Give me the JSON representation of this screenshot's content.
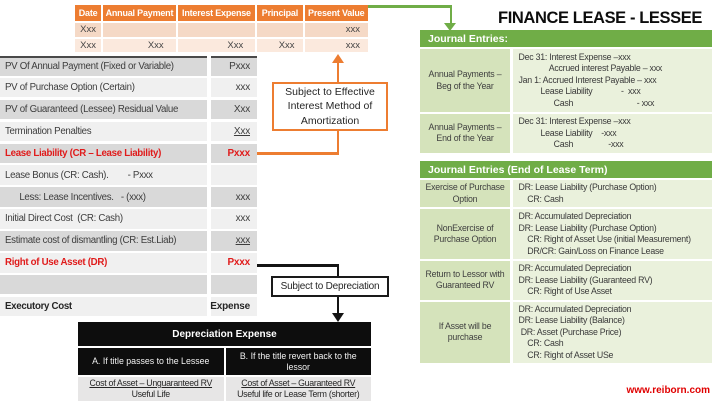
{
  "colors": {
    "accent_orange": "#ED7D31",
    "accent_green": "#70AD47",
    "highlight_red": "#E01B1B",
    "footer_red": "#E00000",
    "table_gray_dark": "#D9D9D9",
    "table_gray_light": "#F0F0F0",
    "green_cell_dark": "#D5E3BB",
    "green_cell_light": "#EAF1DC",
    "black_table": "#0D0D0D"
  },
  "amortization_table": {
    "headers": [
      "Date",
      "Annual Payment",
      "Interest Expense",
      "Principal",
      "Present Value"
    ],
    "rows": [
      [
        "Xxx",
        "",
        "",
        "",
        "xxx"
      ],
      [
        "Xxx",
        "Xxx",
        "Xxx",
        "Xxx",
        "xxx"
      ]
    ]
  },
  "left_table": {
    "rows": [
      {
        "label": "PV Of Annual Payment (Fixed or Variable)",
        "value": "Pxxx"
      },
      {
        "label": "PV of Purchase Option (Certain)",
        "value": "xxx"
      },
      {
        "label": "PV of Guaranteed (Lessee) Residual Value",
        "value": "Xxx"
      },
      {
        "label": "Termination Penalties",
        "value": "Xxx"
      },
      {
        "label": "Lease Liability (CR – Lease Liability)",
        "value": "Pxxx"
      },
      {
        "label": "Lease Bonus (CR: Cash).        - Pxxx",
        "value": ""
      },
      {
        "label": "      Less: Lease Incentives.   - (xxx)",
        "value": "xxx"
      },
      {
        "label": "Initial Direct Cost  (CR: Cash)",
        "value": "xxx"
      },
      {
        "label": "Estimate cost of dismantling (CR: Est.Liab)",
        "value": "xxx"
      },
      {
        "label": "Right of Use Asset (DR)",
        "value": "Pxxx"
      },
      {
        "label": "",
        "value": ""
      },
      {
        "label": "Executory Cost",
        "value": "Expense"
      }
    ]
  },
  "callouts": {
    "amortization": "Subject to Effective Interest Method of Amortization",
    "depreciation": "Subject to Depreciation"
  },
  "depreciation_table": {
    "title": "Depreciation Expense",
    "columns": [
      {
        "header": "A. If title passes to the Lessee",
        "numerator": "Cost of Asset – Unguaranteed RV",
        "denominator": "Useful Life"
      },
      {
        "header": "B. If the title revert back to the lessor",
        "numerator": "Cost of Asset – Guaranteed RV",
        "denominator": "Useful life or Lease Term (shorter)"
      }
    ]
  },
  "right_panel": {
    "title": "FINANCE LEASE - LESSEE",
    "journal_entries": {
      "header": "Journal Entries:",
      "rows": [
        {
          "label": "Annual Payments – Beg of the Year",
          "entries": "Dec 31: Interest Expense –xxx\n              Accrued interest Payable – xxx\nJan 1: Accrued Interest Payable – xxx\n          Lease Liability             -  xxx\n                Cash                             - xxx"
        },
        {
          "label": "Annual Payments – End of the Year",
          "entries": "Dec 31: Interest Expense –xxx\n          Lease Liability    -xxx\n                Cash                -xxx"
        }
      ]
    },
    "journal_entries_end": {
      "header": "Journal Entries (End of Lease Term)",
      "rows": [
        {
          "label": "Exercise of Purchase Option",
          "entries": "DR: Lease Liability (Purchase Option)\n    CR: Cash"
        },
        {
          "label": "NonExercise of Purchase Option",
          "entries": "DR: Accumulated Depreciation\nDR: Lease Liability (Purchase Option)\n    CR: Right of Asset Use (initial Measurement)\n    DR/CR: Gain/Loss on Finance Lease"
        },
        {
          "label": "Return to Lessor with Guaranteed RV",
          "entries": "DR: Accumulated Depreciation\nDR: Lease Liability (Guaranteed RV)\n    CR: Right of Use Asset"
        },
        {
          "label": "If Asset will be purchase",
          "entries": "DR: Accumulated Depreciation\nDR: Lease Liability (Balance)\n DR: Asset (Purchase Price)\n    CR: Cash\n    CR: Right of Asset USe"
        }
      ]
    }
  },
  "footer": {
    "website": "www.reiborn.com"
  }
}
